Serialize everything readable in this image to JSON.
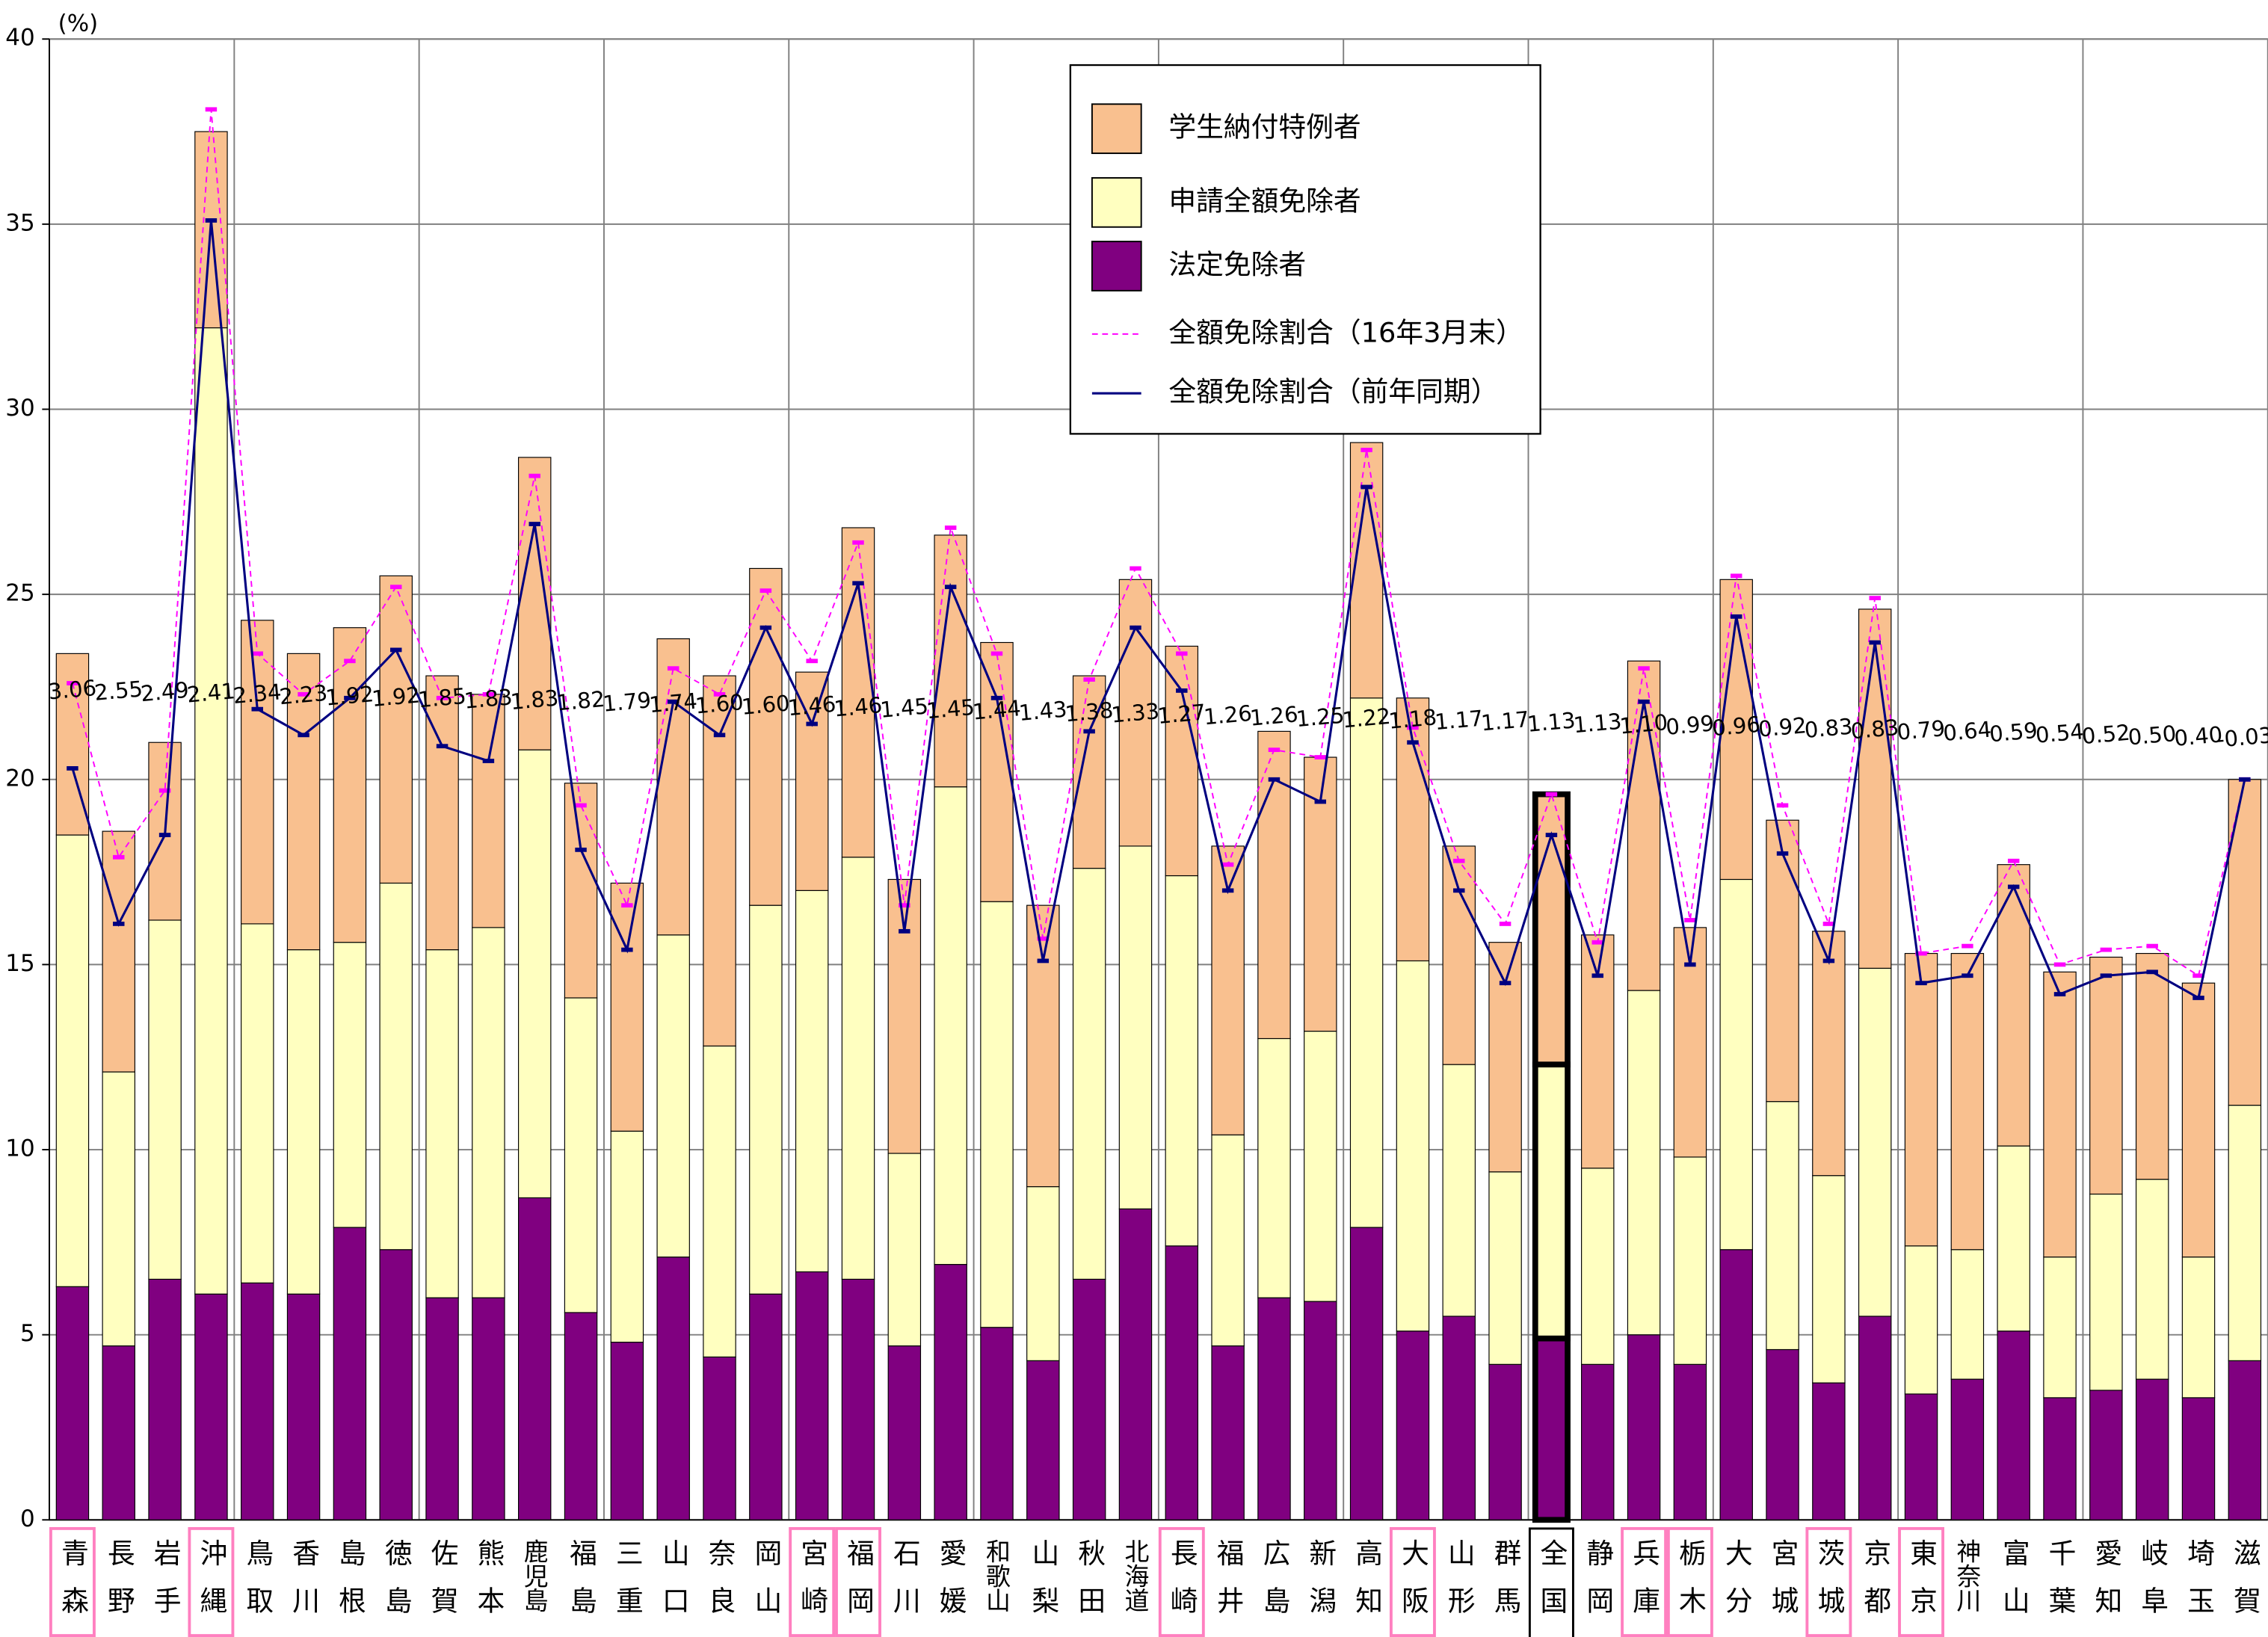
{
  "chart_data": {
    "type": "bar",
    "unit_label": "(%)",
    "categories": [
      "青森",
      "長野",
      "岩手",
      "沖縄",
      "鳥取",
      "香川",
      "島根",
      "徳島",
      "佐賀",
      "熊本",
      "鹿児島",
      "福島",
      "三重",
      "山口",
      "奈良",
      "岡山",
      "宮崎",
      "福岡",
      "石川",
      "愛媛",
      "和歌山",
      "山梨",
      "秋田",
      "北海道",
      "長崎",
      "福井",
      "広島",
      "新潟",
      "高知",
      "大阪",
      "山形",
      "群馬",
      "全国",
      "静岡",
      "兵庫",
      "栃木",
      "大分",
      "宮城",
      "茨城",
      "京都",
      "東京",
      "神奈川",
      "富山",
      "千葉",
      "愛知",
      "岐阜",
      "埼玉",
      "滋賀"
    ],
    "series": [
      {
        "name": "法定免除者",
        "type": "bar",
        "color": "#800080",
        "values": [
          6.3,
          4.7,
          6.5,
          6.1,
          6.4,
          6.1,
          7.9,
          7.3,
          6.0,
          6.0,
          8.7,
          5.6,
          4.8,
          7.1,
          4.4,
          6.1,
          6.7,
          6.5,
          4.7,
          6.9,
          5.2,
          4.3,
          6.5,
          8.4,
          7.4,
          4.7,
          6.0,
          5.9,
          7.9,
          5.1,
          5.5,
          4.2,
          4.9,
          4.2,
          5.0,
          4.2,
          7.3,
          4.6,
          3.7,
          5.5,
          3.4,
          3.8,
          5.1,
          3.3,
          3.5,
          3.8,
          3.3,
          4.3
        ]
      },
      {
        "name": "申請全額免除者",
        "type": "bar",
        "color": "#ffffc0",
        "values": [
          12.2,
          7.4,
          9.7,
          26.1,
          9.7,
          9.3,
          7.7,
          9.9,
          9.4,
          10.0,
          12.1,
          8.5,
          5.7,
          8.7,
          8.4,
          10.5,
          10.3,
          11.4,
          5.2,
          12.9,
          11.5,
          4.7,
          11.1,
          9.8,
          10.0,
          5.7,
          7.0,
          7.3,
          14.3,
          10.0,
          6.8,
          5.2,
          7.4,
          5.3,
          9.3,
          5.6,
          10.0,
          6.7,
          5.6,
          9.4,
          4.0,
          3.5,
          5.0,
          3.8,
          5.3,
          5.4,
          3.8,
          6.9
        ]
      },
      {
        "name": "学生納付特例者",
        "type": "bar",
        "color": "#f9c08f",
        "values": [
          4.9,
          6.5,
          4.8,
          5.3,
          8.2,
          8.0,
          8.5,
          8.3,
          7.4,
          6.3,
          7.9,
          5.8,
          6.7,
          8.0,
          10.0,
          9.1,
          5.9,
          8.9,
          7.4,
          6.8,
          7.0,
          7.6,
          5.2,
          7.2,
          6.2,
          7.8,
          8.3,
          7.4,
          6.9,
          7.1,
          5.9,
          6.2,
          7.3,
          6.3,
          8.9,
          6.2,
          8.1,
          7.6,
          6.6,
          9.7,
          7.9,
          8.0,
          7.6,
          7.7,
          6.4,
          6.1,
          7.4,
          8.8
        ]
      },
      {
        "name": "全額免除割合（16年3月末）",
        "type": "line",
        "dashed": true,
        "color": "#ff00ff",
        "values": [
          22.6,
          17.9,
          19.7,
          38.1,
          23.4,
          22.3,
          23.2,
          25.2,
          22.2,
          22.3,
          28.2,
          19.3,
          16.6,
          23.0,
          22.3,
          25.1,
          23.2,
          26.4,
          16.6,
          26.8,
          23.4,
          15.7,
          22.7,
          25.7,
          23.4,
          17.7,
          20.8,
          20.6,
          28.9,
          21.4,
          17.8,
          16.1,
          19.6,
          15.6,
          23.0,
          16.2,
          25.5,
          19.3,
          16.1,
          24.9,
          15.3,
          15.5,
          17.8,
          15.0,
          15.4,
          15.5,
          14.7,
          20.0
        ]
      },
      {
        "name": "全額免除割合（前年同期）",
        "type": "line",
        "dashed": false,
        "color": "#000080",
        "values": [
          20.3,
          16.1,
          18.5,
          35.1,
          21.9,
          21.2,
          22.2,
          23.5,
          20.9,
          20.5,
          26.9,
          18.1,
          15.4,
          22.1,
          21.2,
          24.1,
          21.5,
          25.3,
          15.9,
          25.2,
          22.2,
          15.1,
          21.3,
          24.1,
          22.4,
          17.0,
          20.0,
          19.4,
          27.9,
          21.0,
          17.0,
          14.5,
          18.5,
          14.7,
          22.1,
          15.0,
          24.4,
          18.0,
          15.1,
          23.7,
          14.5,
          14.7,
          17.1,
          14.2,
          14.7,
          14.8,
          14.1,
          20.0
        ]
      }
    ],
    "difference_labels": [
      "3.06",
      "2.55",
      "2.49",
      "2.41",
      "2.34",
      "2.23",
      "1.92",
      "1.92",
      "1.85",
      "1.83",
      "1.83",
      "1.82",
      "1.79",
      "1.74",
      "1.60",
      "1.60",
      "1.46",
      "1.46",
      "1.45",
      "1.45",
      "1.44",
      "1.43",
      "1.38",
      "1.33",
      "1.27",
      "1.26",
      "1.26",
      "1.25",
      "1.22",
      "1.18",
      "1.17",
      "1.17",
      "1.13",
      "1.13",
      "1.10",
      "0.99",
      "0.96",
      "0.92",
      "0.83",
      "0.83",
      "0.79",
      "0.64",
      "0.59",
      "0.54",
      "0.52",
      "0.50",
      "0.40",
      "-0.03"
    ],
    "negative_label_color": "#ff0000",
    "highlighted_categories": [
      0,
      3,
      16,
      17,
      24,
      29,
      34,
      35,
      38,
      40
    ],
    "highlight_color": "#ff80c0",
    "total_category": 32,
    "ylim": [
      0,
      40
    ],
    "yticks": [
      0,
      5,
      10,
      15,
      20,
      25,
      30,
      35,
      40
    ],
    "grid": true
  }
}
